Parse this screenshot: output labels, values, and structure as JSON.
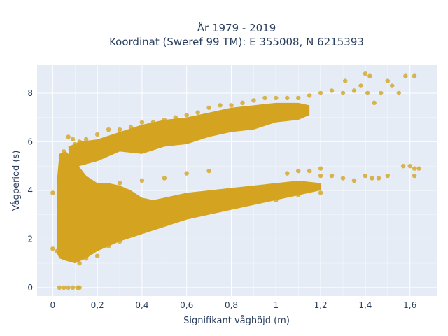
{
  "chart_data": {
    "type": "scatter",
    "title": "År 1979 - 2019",
    "subtitle": "Koordinat (Sweref 99 TM): E 355008, N 6215393",
    "xlabel": "Signifikant våghöjd (m)",
    "ylabel": "Vågperiod (s)",
    "xlim": [
      -0.07,
      1.72
    ],
    "ylim": [
      -0.35,
      9.15
    ],
    "xticks": [
      0,
      0.2,
      0.4,
      0.6,
      0.8,
      1,
      1.2,
      1.4,
      1.6
    ],
    "xtick_labels": [
      "0",
      "0,2",
      "0,4",
      "0,6",
      "0,8",
      "1",
      "1,2",
      "1,4",
      "1,6"
    ],
    "yticks": [
      0,
      2,
      4,
      6,
      8
    ],
    "ytick_labels": [
      "0",
      "2",
      "4",
      "6",
      "8"
    ],
    "grid": true,
    "marker_color": "#D4A420",
    "plot_background": "#E5ECF6",
    "series": [
      {
        "name": "",
        "points": [
          [
            0.03,
            0.0
          ],
          [
            0.05,
            0.0
          ],
          [
            0.07,
            0.0
          ],
          [
            0.09,
            0.0
          ],
          [
            0.11,
            0.0
          ],
          [
            0.12,
            0.0
          ],
          [
            0.0,
            3.9
          ],
          [
            0.0,
            1.6
          ],
          [
            0.02,
            1.5
          ],
          [
            0.05,
            5.4
          ],
          [
            0.05,
            5.6
          ],
          [
            0.07,
            6.2
          ],
          [
            0.09,
            6.1
          ],
          [
            0.1,
            5.9
          ],
          [
            0.12,
            6.0
          ],
          [
            0.15,
            6.1
          ],
          [
            0.2,
            6.3
          ],
          [
            0.25,
            6.5
          ],
          [
            0.3,
            6.5
          ],
          [
            0.35,
            6.6
          ],
          [
            0.4,
            6.8
          ],
          [
            0.45,
            6.8
          ],
          [
            0.5,
            6.9
          ],
          [
            0.55,
            7.0
          ],
          [
            0.6,
            7.1
          ],
          [
            0.65,
            7.2
          ],
          [
            0.7,
            7.4
          ],
          [
            0.75,
            7.5
          ],
          [
            0.8,
            7.5
          ],
          [
            0.85,
            7.6
          ],
          [
            0.9,
            7.7
          ],
          [
            0.95,
            7.8
          ],
          [
            1.0,
            7.8
          ],
          [
            1.05,
            7.8
          ],
          [
            1.1,
            7.8
          ],
          [
            1.15,
            7.9
          ],
          [
            1.2,
            8.0
          ],
          [
            1.25,
            8.1
          ],
          [
            1.3,
            8.0
          ],
          [
            1.35,
            8.1
          ],
          [
            1.38,
            8.3
          ],
          [
            1.41,
            8.0
          ],
          [
            1.44,
            7.6
          ],
          [
            1.47,
            8.0
          ],
          [
            1.5,
            8.5
          ],
          [
            1.52,
            8.3
          ],
          [
            1.55,
            8.0
          ],
          [
            1.58,
            8.7
          ],
          [
            1.62,
            8.7
          ],
          [
            1.4,
            8.8
          ],
          [
            1.42,
            8.7
          ],
          [
            1.31,
            8.5
          ],
          [
            0.3,
            4.3
          ],
          [
            0.4,
            4.4
          ],
          [
            0.5,
            4.5
          ],
          [
            0.6,
            4.7
          ],
          [
            0.7,
            4.8
          ],
          [
            1.05,
            4.7
          ],
          [
            1.1,
            4.8
          ],
          [
            1.15,
            4.8
          ],
          [
            1.2,
            4.6
          ],
          [
            1.25,
            4.6
          ],
          [
            1.3,
            4.5
          ],
          [
            1.35,
            4.4
          ],
          [
            1.4,
            4.6
          ],
          [
            1.43,
            4.5
          ],
          [
            1.46,
            4.5
          ],
          [
            1.5,
            4.6
          ],
          [
            1.57,
            5.0
          ],
          [
            1.6,
            5.0
          ],
          [
            1.62,
            4.9
          ],
          [
            1.64,
            4.9
          ],
          [
            1.62,
            4.6
          ],
          [
            1.2,
            4.9
          ],
          [
            0.1,
            1.1
          ],
          [
            0.12,
            1.0
          ],
          [
            0.15,
            1.2
          ],
          [
            0.2,
            1.3
          ],
          [
            0.25,
            1.7
          ],
          [
            0.3,
            1.9
          ],
          [
            0.35,
            2.2
          ],
          [
            0.4,
            2.4
          ],
          [
            0.5,
            2.6
          ],
          [
            0.6,
            2.9
          ],
          [
            0.7,
            3.1
          ],
          [
            0.8,
            3.3
          ],
          [
            0.9,
            3.5
          ],
          [
            1.0,
            3.6
          ],
          [
            1.1,
            3.8
          ],
          [
            1.2,
            3.9
          ]
        ]
      }
    ]
  }
}
